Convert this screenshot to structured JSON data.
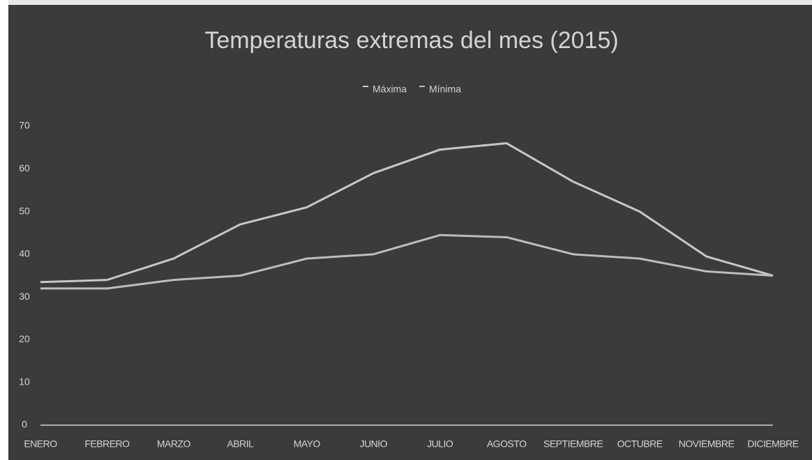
{
  "chart_data": {
    "type": "line",
    "title": "Temperaturas extremas del mes (2015)",
    "categories": [
      "ENERO",
      "FEBRERO",
      "MARZO",
      "ABRIL",
      "MAYO",
      "JUNIO",
      "JULIO",
      "AGOSTO",
      "SEPTIEMBRE",
      "OCTUBRE",
      "NOVIEMBRE",
      "DICIEMBRE"
    ],
    "series": [
      {
        "name": "Máxima",
        "color": "#c8c8c8",
        "values": [
          33.5,
          34,
          39,
          47,
          51,
          59,
          64.5,
          66,
          57,
          50,
          39.5,
          35
        ]
      },
      {
        "name": "Mínima",
        "color": "#bdbdbd",
        "values": [
          32,
          32,
          34,
          35,
          39,
          40,
          44.5,
          44,
          40,
          39,
          36,
          35
        ]
      }
    ],
    "ylim": [
      0,
      70
    ],
    "yticks": [
      0,
      10,
      20,
      30,
      40,
      50,
      60,
      70
    ],
    "grid": false,
    "legend": "top"
  }
}
